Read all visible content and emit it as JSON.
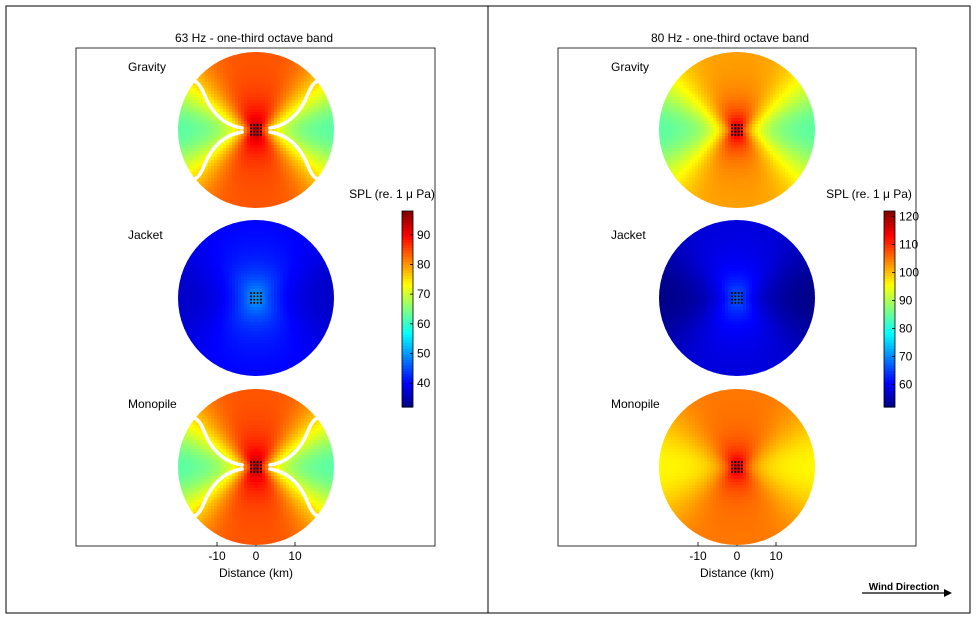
{
  "chart_data": [
    {
      "type": "heatmap",
      "title": "63 Hz - one-third octave band",
      "xlabel": "Distance (km)",
      "xticks": [
        -10,
        0,
        10
      ],
      "xlim": [
        -20,
        20
      ],
      "colorbar": {
        "label": "SPL (re. 1 μ Pa)",
        "ticks": [
          40,
          50,
          60,
          70,
          80,
          90
        ],
        "range": [
          32,
          98
        ]
      },
      "maps": [
        {
          "label": "Gravity",
          "center_level": 96,
          "broadside_level": 84,
          "endfire_level": 62,
          "falloff": 0.25,
          "null_contour": true
        },
        {
          "label": "Jacket",
          "center_level": 52,
          "broadside_level": 40,
          "endfire_level": 36,
          "falloff": 0.3,
          "null_contour": false
        },
        {
          "label": "Monopile",
          "center_level": 96,
          "broadside_level": 84,
          "endfire_level": 62,
          "falloff": 0.25,
          "null_contour": true
        }
      ]
    },
    {
      "type": "heatmap",
      "title": "80 Hz - one-third octave band",
      "xlabel": "Distance (km)",
      "xticks": [
        -10,
        0,
        10
      ],
      "xlim": [
        -20,
        20
      ],
      "colorbar": {
        "label": "SPL (re. 1 μ Pa)",
        "ticks": [
          60,
          70,
          80,
          90,
          100,
          110,
          120
        ],
        "range": [
          52,
          122
        ]
      },
      "maps": [
        {
          "label": "Gravity",
          "center_level": 118,
          "broadside_level": 102,
          "endfire_level": 84,
          "falloff": 0.25,
          "null_contour": false
        },
        {
          "label": "Jacket",
          "center_level": 68,
          "broadside_level": 58,
          "endfire_level": 52,
          "falloff": 0.3,
          "null_contour": false
        },
        {
          "label": "Monopile",
          "center_level": 118,
          "broadside_level": 105,
          "endfire_level": 96,
          "falloff": 0.2,
          "null_contour": false
        }
      ]
    }
  ],
  "wind_direction_label": "Wind Direction"
}
